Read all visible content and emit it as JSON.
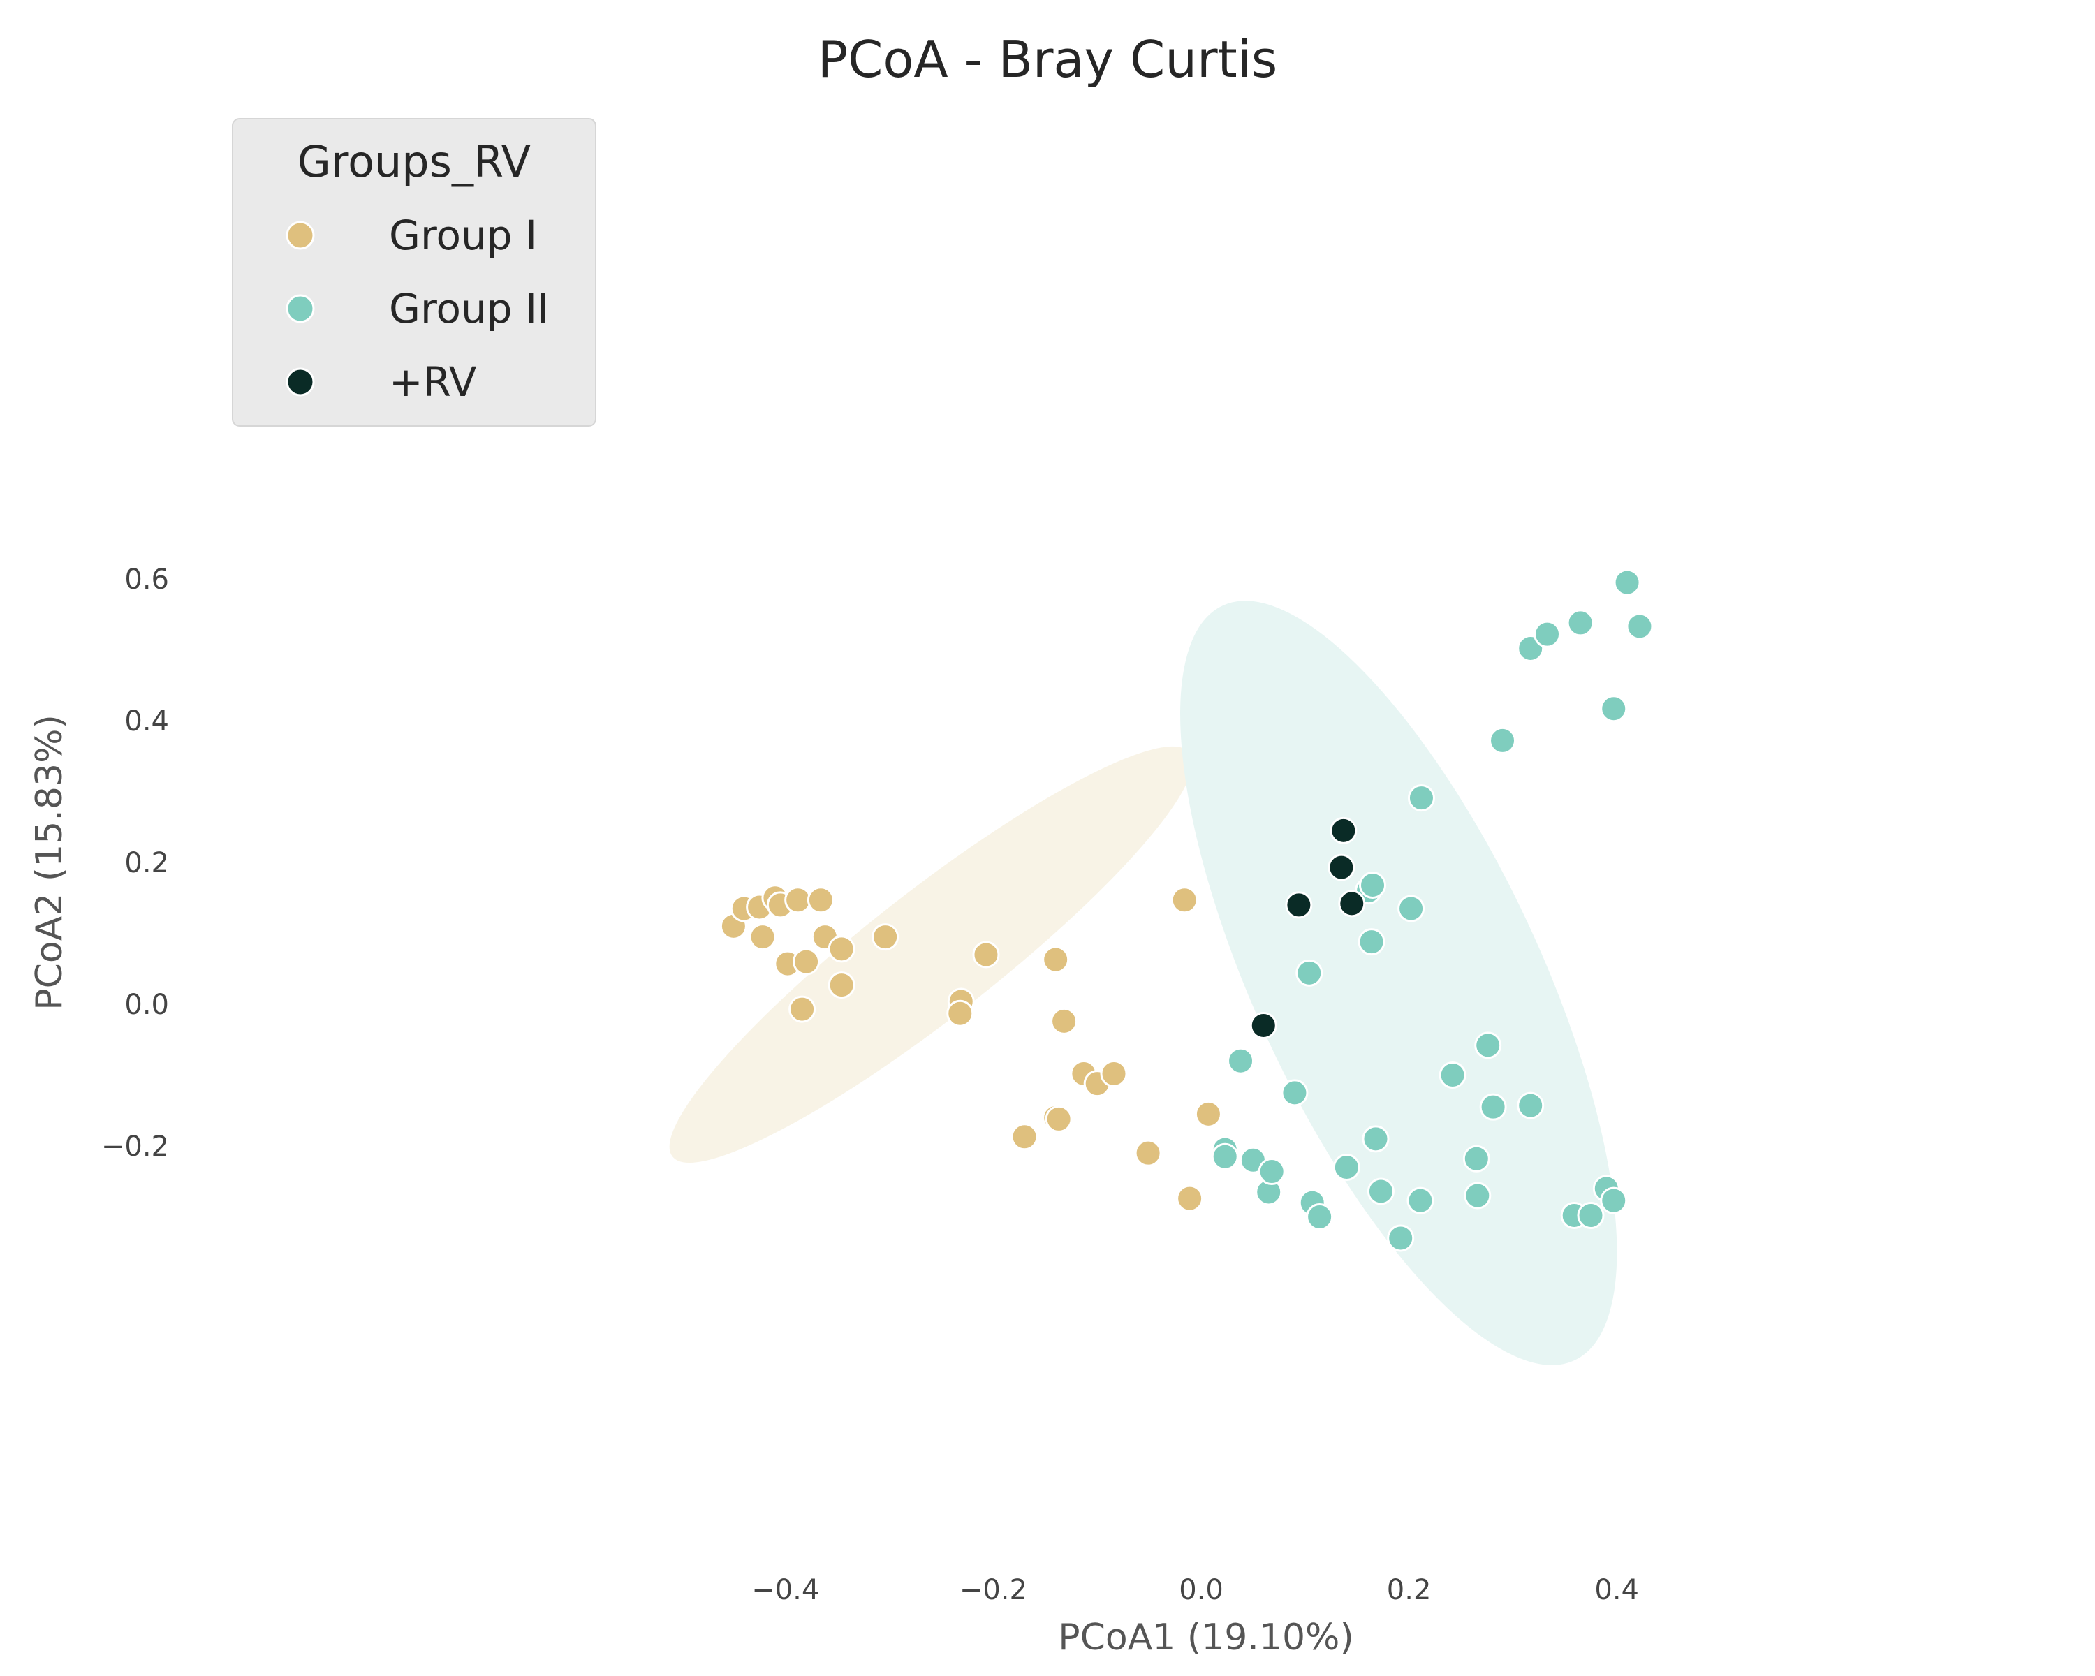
{
  "chart_data": {
    "type": "scatter",
    "title": "PCoA - Bray Curtis",
    "xlabel": "PCoA1 (19.10%)",
    "ylabel": "PCoA2 (15.83%)",
    "xlim": [
      -0.48,
      0.4
    ],
    "ylim": [
      -0.37,
      0.6
    ],
    "xticks": [
      -0.4,
      -0.2,
      0.0,
      0.2,
      0.4
    ],
    "yticks": [
      -0.2,
      0.0,
      0.2,
      0.4,
      0.6
    ],
    "grid": false,
    "legend": {
      "title": "Groups_RV",
      "placement": "upper-left",
      "entries": [
        {
          "label": "Group I",
          "color": "#dfc07e"
        },
        {
          "label": "Group II",
          "color": "#7fcdbe"
        },
        {
          "label": "+RV",
          "color": "#0a2b26"
        }
      ]
    },
    "ellipses": [
      {
        "group": "Group I",
        "color": "#f8f3e6",
        "cx": -0.26,
        "cy": 0.07,
        "rx": 0.315,
        "ry": 0.088,
        "angle_deg": -38
      },
      {
        "group": "Group II",
        "color": "#e7f5f3",
        "cx": 0.19,
        "cy": 0.03,
        "rx": 0.4,
        "ry": 0.2,
        "angle_deg": 65
      }
    ],
    "series": [
      {
        "name": "Group I",
        "color": "#dfc07e",
        "points": [
          [
            -0.45,
            0.11
          ],
          [
            -0.44,
            0.135
          ],
          [
            -0.425,
            0.137
          ],
          [
            -0.422,
            0.095
          ],
          [
            -0.41,
            0.15
          ],
          [
            -0.405,
            0.14
          ],
          [
            -0.398,
            0.057
          ],
          [
            -0.388,
            0.147
          ],
          [
            -0.384,
            -0.007
          ],
          [
            -0.38,
            0.06
          ],
          [
            -0.366,
            0.147
          ],
          [
            -0.362,
            0.095
          ],
          [
            -0.346,
            0.078
          ],
          [
            -0.346,
            0.027
          ],
          [
            -0.304,
            0.095
          ],
          [
            -0.231,
            0.004
          ],
          [
            -0.232,
            -0.013
          ],
          [
            -0.207,
            0.07
          ],
          [
            -0.17,
            -0.187
          ],
          [
            -0.14,
            0.063
          ],
          [
            -0.14,
            -0.16
          ],
          [
            -0.137,
            -0.162
          ],
          [
            -0.132,
            -0.024
          ],
          [
            -0.113,
            -0.098
          ],
          [
            -0.1,
            -0.112
          ],
          [
            -0.084,
            -0.098
          ],
          [
            -0.051,
            -0.21
          ],
          [
            -0.016,
            0.147
          ],
          [
            -0.011,
            -0.274
          ],
          [
            0.007,
            -0.155
          ]
        ]
      },
      {
        "name": "Group II",
        "color": "#7fcdbe",
        "points": [
          [
            0.023,
            -0.205
          ],
          [
            0.023,
            -0.215
          ],
          [
            0.038,
            -0.08
          ],
          [
            0.05,
            -0.22
          ],
          [
            0.065,
            -0.265
          ],
          [
            0.068,
            -0.236
          ],
          [
            0.09,
            -0.125
          ],
          [
            0.104,
            0.044
          ],
          [
            0.107,
            -0.28
          ],
          [
            0.114,
            -0.3
          ],
          [
            0.14,
            -0.23
          ],
          [
            0.161,
            0.16
          ],
          [
            0.164,
            0.088
          ],
          [
            0.165,
            0.168
          ],
          [
            0.168,
            -0.19
          ],
          [
            0.173,
            -0.264
          ],
          [
            0.192,
            -0.33
          ],
          [
            0.202,
            0.135
          ],
          [
            0.211,
            -0.277
          ],
          [
            0.212,
            0.291
          ],
          [
            0.242,
            -0.1
          ],
          [
            0.265,
            -0.218
          ],
          [
            0.266,
            -0.27
          ],
          [
            0.276,
            -0.058
          ],
          [
            0.281,
            -0.145
          ],
          [
            0.29,
            0.372
          ],
          [
            0.317,
            0.502
          ],
          [
            0.317,
            -0.143
          ],
          [
            0.333,
            0.522
          ],
          [
            0.365,
            0.538
          ],
          [
            0.359,
            -0.298
          ],
          [
            0.375,
            -0.298
          ],
          [
            0.39,
            -0.26
          ],
          [
            0.397,
            0.417
          ],
          [
            0.397,
            -0.277
          ],
          [
            0.41,
            0.595
          ],
          [
            0.422,
            0.533
          ]
        ]
      },
      {
        "name": "+RV",
        "color": "#0a2b26",
        "points": [
          [
            0.06,
            -0.03
          ],
          [
            0.094,
            0.14
          ],
          [
            0.135,
            0.193
          ],
          [
            0.137,
            0.245
          ],
          [
            0.145,
            0.142
          ]
        ]
      }
    ]
  }
}
